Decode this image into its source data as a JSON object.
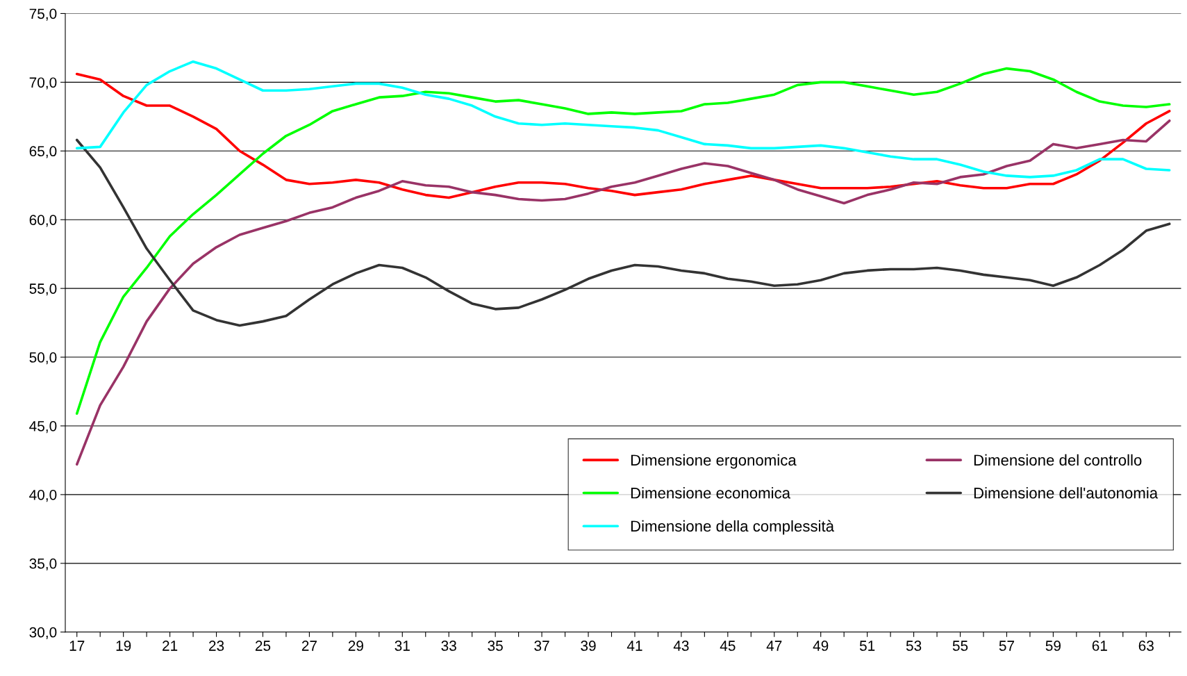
{
  "chart_data": {
    "type": "line",
    "categories": [
      "17",
      null,
      "19",
      null,
      "21",
      null,
      "23",
      null,
      "25",
      null,
      "27",
      null,
      "29",
      null,
      "31",
      null,
      "33",
      null,
      "35",
      null,
      "37",
      null,
      "39",
      null,
      "41",
      null,
      "43",
      null,
      "45",
      null,
      "47",
      null,
      "49",
      null,
      "51",
      null,
      "53",
      null,
      "55",
      null,
      "57",
      null,
      "59",
      null,
      "61",
      null,
      "63",
      null
    ],
    "series": [
      {
        "name": "Dimensione ergonomica",
        "color": "#ff0000",
        "values": [
          70.6,
          70.2,
          69.0,
          68.3,
          68.3,
          67.5,
          66.6,
          65.0,
          64.0,
          62.9,
          62.6,
          62.7,
          62.9,
          62.7,
          62.2,
          61.8,
          61.6,
          62.0,
          62.4,
          62.7,
          62.7,
          62.6,
          62.3,
          62.1,
          61.8,
          62.0,
          62.2,
          62.6,
          62.9,
          63.2,
          62.9,
          62.6,
          62.3,
          62.3,
          62.3,
          62.4,
          62.6,
          62.8,
          62.5,
          62.3,
          62.3,
          62.6,
          62.6,
          63.3,
          64.3,
          65.6,
          67.0,
          67.9
        ]
      },
      {
        "name": "Dimensione del controllo",
        "color": "#993366",
        "values": [
          42.2,
          46.5,
          49.3,
          52.6,
          55.0,
          56.8,
          58.0,
          58.9,
          59.4,
          59.9,
          60.5,
          60.9,
          61.6,
          62.1,
          62.8,
          62.5,
          62.4,
          62.0,
          61.8,
          61.5,
          61.4,
          61.5,
          61.9,
          62.4,
          62.7,
          63.2,
          63.7,
          64.1,
          63.9,
          63.4,
          62.9,
          62.2,
          61.7,
          61.2,
          61.8,
          62.2,
          62.7,
          62.6,
          63.1,
          63.3,
          63.9,
          64.3,
          65.5,
          65.2,
          65.5,
          65.8,
          65.7,
          67.2
        ]
      },
      {
        "name": "Dimensione economica",
        "color": "#00ff00",
        "values": [
          45.9,
          51.1,
          54.4,
          56.5,
          58.8,
          60.4,
          61.8,
          63.3,
          64.8,
          66.1,
          66.9,
          67.9,
          68.4,
          68.9,
          69.0,
          69.3,
          69.2,
          68.9,
          68.6,
          68.7,
          68.4,
          68.1,
          67.7,
          67.8,
          67.7,
          67.8,
          67.9,
          68.4,
          68.5,
          68.8,
          69.1,
          69.8,
          70.0,
          70.0,
          69.7,
          69.4,
          69.1,
          69.3,
          69.9,
          70.6,
          71.0,
          70.8,
          70.2,
          69.3,
          68.6,
          68.3,
          68.2,
          68.4
        ]
      },
      {
        "name": "Dimensione dell'autonomia",
        "color": "#333333",
        "values": [
          65.8,
          63.8,
          60.9,
          57.9,
          55.6,
          53.4,
          52.7,
          52.3,
          52.6,
          53.0,
          54.2,
          55.3,
          56.1,
          56.7,
          56.5,
          55.8,
          54.8,
          53.9,
          53.5,
          53.6,
          54.2,
          54.9,
          55.7,
          56.3,
          56.7,
          56.6,
          56.3,
          56.1,
          55.7,
          55.5,
          55.2,
          55.3,
          55.6,
          56.1,
          56.3,
          56.4,
          56.4,
          56.5,
          56.3,
          56.0,
          55.8,
          55.6,
          55.2,
          55.8,
          56.7,
          57.8,
          59.2,
          59.7
        ]
      },
      {
        "name": "Dimensione della complessità",
        "color": "#00ffff",
        "values": [
          65.2,
          65.3,
          67.8,
          69.8,
          70.8,
          71.5,
          71.0,
          70.2,
          69.4,
          69.4,
          69.5,
          69.7,
          69.9,
          69.9,
          69.6,
          69.1,
          68.8,
          68.3,
          67.5,
          67.0,
          66.9,
          67.0,
          66.9,
          66.8,
          66.7,
          66.5,
          66.0,
          65.5,
          65.4,
          65.2,
          65.2,
          65.3,
          65.4,
          65.2,
          64.9,
          64.6,
          64.4,
          64.4,
          64.0,
          63.5,
          63.2,
          63.1,
          63.2,
          63.6,
          64.4,
          64.4,
          63.7,
          63.6
        ]
      }
    ],
    "ylim": [
      30,
      75
    ],
    "yticks": [
      {
        "value": 30,
        "label": "30,0"
      },
      {
        "value": 35,
        "label": "35,0"
      },
      {
        "value": 40,
        "label": "40,0"
      },
      {
        "value": 45,
        "label": "45,0"
      },
      {
        "value": 50,
        "label": "50,0"
      },
      {
        "value": 55,
        "label": "55,0"
      },
      {
        "value": 60,
        "label": "60,0"
      },
      {
        "value": 65,
        "label": "65,0"
      },
      {
        "value": 70,
        "label": "70,0"
      },
      {
        "value": 75,
        "label": "75,0"
      }
    ],
    "grid": "y",
    "legend": "bottom right",
    "marker": "none",
    "line_style": "solid"
  }
}
